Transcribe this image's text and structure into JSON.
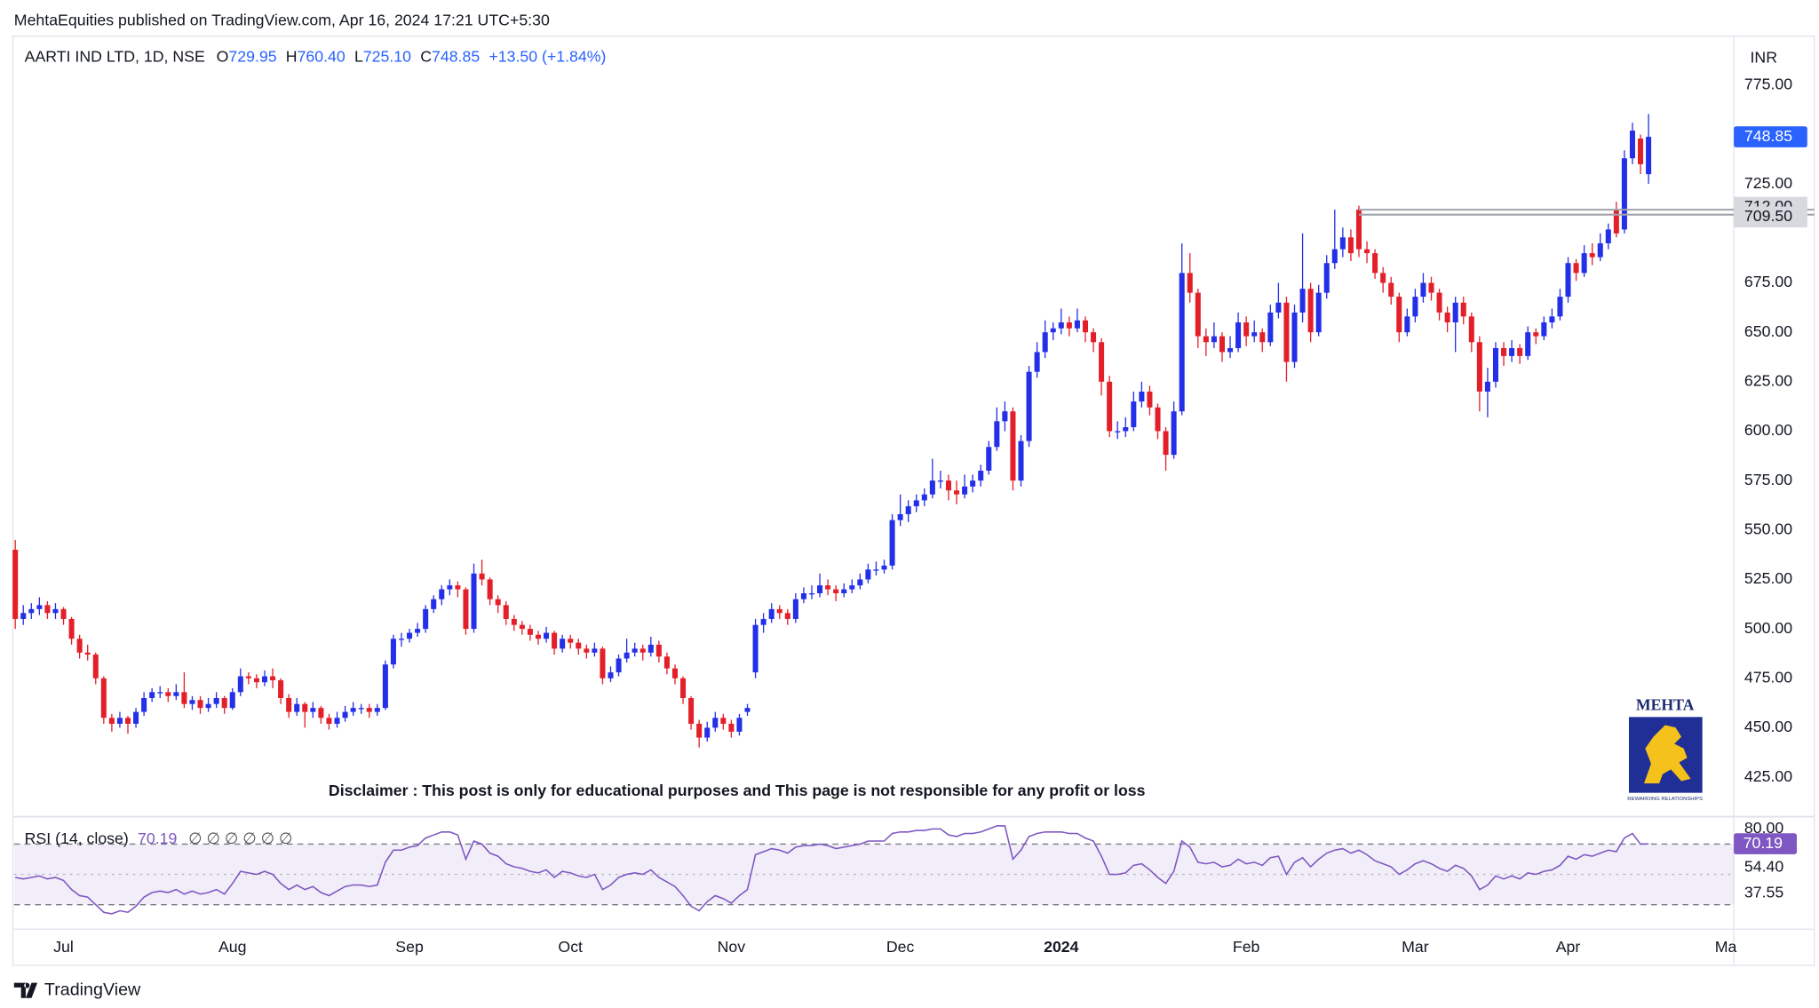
{
  "header": "MehtaEquities published on TradingView.com, Apr 16, 2024 17:21 UTC+5:30",
  "footer": "TradingView",
  "chart_data": {
    "type": "candlestick",
    "title": "AARTI IND LTD, 1D, NSE",
    "ohlc_prefixes": [
      "O",
      "H",
      "L",
      "C"
    ],
    "ohlc_labels": [
      "729.95",
      "760.40",
      "725.10",
      "748.85"
    ],
    "change_label": "+13.50 (+1.84%)",
    "currency": "INR",
    "last_price_label": "748.85",
    "up_color": "#2430e8",
    "down_color": "#e3202a",
    "annotation": "Disclaimer : This post is only for educational purposes and This page is not responsible for any profit or loss",
    "logo": {
      "title": "MEHTA",
      "tagline": "REWARDING RELATIONSHIPS"
    },
    "candles": [
      [
        540,
        545,
        500,
        505
      ],
      [
        505,
        512,
        502,
        508
      ],
      [
        508,
        513,
        505,
        510
      ],
      [
        510,
        516,
        507,
        512
      ],
      [
        512,
        514,
        505,
        508
      ],
      [
        508,
        513,
        505,
        510
      ],
      [
        510,
        511,
        502,
        505
      ],
      [
        505,
        506,
        492,
        495
      ],
      [
        495,
        497,
        485,
        488
      ],
      [
        488,
        492,
        484,
        487
      ],
      [
        487,
        488,
        472,
        475
      ],
      [
        475,
        476,
        452,
        455
      ],
      [
        455,
        457,
        448,
        452
      ],
      [
        452,
        458,
        450,
        455
      ],
      [
        455,
        456,
        447,
        452
      ],
      [
        452,
        460,
        450,
        458
      ],
      [
        458,
        468,
        456,
        465
      ],
      [
        465,
        470,
        463,
        468
      ],
      [
        468,
        471,
        465,
        468
      ],
      [
        468,
        470,
        463,
        466
      ],
      [
        466,
        472,
        464,
        468
      ],
      [
        468,
        478,
        460,
        462
      ],
      [
        462,
        466,
        459,
        464
      ],
      [
        464,
        466,
        457,
        460
      ],
      [
        460,
        465,
        458,
        462
      ],
      [
        462,
        468,
        460,
        465
      ],
      [
        465,
        466,
        457,
        460
      ],
      [
        460,
        470,
        459,
        468
      ],
      [
        468,
        480,
        466,
        476
      ],
      [
        476,
        478,
        472,
        475
      ],
      [
        475,
        477,
        470,
        473
      ],
      [
        473,
        479,
        471,
        476
      ],
      [
        476,
        480,
        470,
        474
      ],
      [
        474,
        475,
        462,
        465
      ],
      [
        465,
        467,
        455,
        458
      ],
      [
        458,
        465,
        456,
        462
      ],
      [
        462,
        463,
        450,
        458
      ],
      [
        458,
        463,
        455,
        460
      ],
      [
        460,
        461,
        452,
        455
      ],
      [
        455,
        457,
        449,
        452
      ],
      [
        452,
        458,
        450,
        455
      ],
      [
        455,
        461,
        453,
        458
      ],
      [
        458,
        463,
        456,
        460
      ],
      [
        460,
        462,
        457,
        460
      ],
      [
        460,
        462,
        455,
        458
      ],
      [
        458,
        462,
        456,
        460
      ],
      [
        460,
        484,
        459,
        482
      ],
      [
        482,
        497,
        480,
        495
      ],
      [
        495,
        498,
        491,
        495
      ],
      [
        495,
        500,
        493,
        498
      ],
      [
        498,
        503,
        496,
        500
      ],
      [
        500,
        512,
        498,
        510
      ],
      [
        510,
        517,
        508,
        515
      ],
      [
        515,
        522,
        512,
        520
      ],
      [
        520,
        525,
        517,
        522
      ],
      [
        522,
        524,
        516,
        520
      ],
      [
        520,
        521,
        497,
        500
      ],
      [
        500,
        533,
        498,
        528
      ],
      [
        528,
        535,
        522,
        525
      ],
      [
        525,
        526,
        512,
        515
      ],
      [
        515,
        517,
        508,
        512
      ],
      [
        512,
        514,
        502,
        505
      ],
      [
        505,
        507,
        499,
        502
      ],
      [
        502,
        504,
        497,
        500
      ],
      [
        500,
        502,
        494,
        497
      ],
      [
        497,
        499,
        492,
        495
      ],
      [
        495,
        501,
        493,
        498
      ],
      [
        498,
        499,
        487,
        490
      ],
      [
        490,
        497,
        488,
        495
      ],
      [
        495,
        497,
        490,
        493
      ],
      [
        493,
        495,
        487,
        490
      ],
      [
        490,
        492,
        485,
        488
      ],
      [
        488,
        493,
        486,
        490
      ],
      [
        490,
        491,
        472,
        475
      ],
      [
        475,
        481,
        473,
        478
      ],
      [
        478,
        487,
        476,
        485
      ],
      [
        485,
        495,
        483,
        488
      ],
      [
        488,
        493,
        486,
        490
      ],
      [
        490,
        492,
        484,
        488
      ],
      [
        488,
        496,
        486,
        492
      ],
      [
        492,
        494,
        483,
        486
      ],
      [
        486,
        488,
        477,
        480
      ],
      [
        480,
        482,
        472,
        475
      ],
      [
        475,
        476,
        462,
        465
      ],
      [
        465,
        466,
        449,
        452
      ],
      [
        452,
        454,
        440,
        445
      ],
      [
        445,
        453,
        443,
        450
      ],
      [
        450,
        458,
        448,
        455
      ],
      [
        455,
        457,
        449,
        452
      ],
      [
        452,
        454,
        445,
        448
      ],
      [
        448,
        457,
        446,
        455
      ],
      [
        458,
        462,
        456,
        460
      ],
      [
        478,
        505,
        475,
        502
      ],
      [
        502,
        508,
        498,
        505
      ],
      [
        505,
        513,
        503,
        510
      ],
      [
        510,
        512,
        505,
        508
      ],
      [
        508,
        510,
        502,
        505
      ],
      [
        505,
        518,
        503,
        515
      ],
      [
        515,
        521,
        513,
        518
      ],
      [
        518,
        522,
        515,
        518
      ],
      [
        518,
        528,
        516,
        522
      ],
      [
        522,
        525,
        517,
        520
      ],
      [
        520,
        522,
        514,
        518
      ],
      [
        518,
        523,
        516,
        520
      ],
      [
        520,
        525,
        518,
        522
      ],
      [
        522,
        528,
        520,
        525
      ],
      [
        525,
        533,
        523,
        530
      ],
      [
        530,
        534,
        527,
        530
      ],
      [
        530,
        535,
        528,
        532
      ],
      [
        532,
        558,
        530,
        555
      ],
      [
        555,
        568,
        552,
        558
      ],
      [
        558,
        565,
        554,
        562
      ],
      [
        562,
        568,
        559,
        565
      ],
      [
        565,
        571,
        562,
        568
      ],
      [
        568,
        586,
        566,
        575
      ],
      [
        575,
        580,
        571,
        575
      ],
      [
        575,
        578,
        565,
        570
      ],
      [
        570,
        575,
        563,
        568
      ],
      [
        568,
        578,
        566,
        572
      ],
      [
        572,
        578,
        569,
        575
      ],
      [
        575,
        583,
        572,
        580
      ],
      [
        580,
        595,
        578,
        592
      ],
      [
        592,
        612,
        590,
        605
      ],
      [
        605,
        615,
        600,
        610
      ],
      [
        610,
        612,
        570,
        575
      ],
      [
        575,
        598,
        572,
        595
      ],
      [
        595,
        633,
        592,
        630
      ],
      [
        630,
        645,
        627,
        640
      ],
      [
        640,
        656,
        637,
        650
      ],
      [
        650,
        655,
        646,
        652
      ],
      [
        652,
        662,
        649,
        655
      ],
      [
        655,
        658,
        648,
        652
      ],
      [
        652,
        662,
        650,
        656
      ],
      [
        656,
        658,
        645,
        650
      ],
      [
        650,
        652,
        640,
        645
      ],
      [
        645,
        647,
        618,
        625
      ],
      [
        625,
        628,
        597,
        600
      ],
      [
        600,
        605,
        596,
        600
      ],
      [
        600,
        607,
        597,
        602
      ],
      [
        602,
        620,
        600,
        615
      ],
      [
        615,
        625,
        612,
        620
      ],
      [
        620,
        623,
        608,
        612
      ],
      [
        612,
        614,
        596,
        600
      ],
      [
        600,
        602,
        580,
        588
      ],
      [
        588,
        615,
        586,
        610
      ],
      [
        610,
        695,
        608,
        680
      ],
      [
        680,
        690,
        665,
        670
      ],
      [
        670,
        672,
        642,
        648
      ],
      [
        648,
        652,
        638,
        645
      ],
      [
        645,
        655,
        642,
        648
      ],
      [
        648,
        650,
        635,
        640
      ],
      [
        640,
        648,
        637,
        642
      ],
      [
        642,
        660,
        640,
        655
      ],
      [
        655,
        658,
        643,
        648
      ],
      [
        648,
        656,
        645,
        650
      ],
      [
        650,
        652,
        640,
        645
      ],
      [
        645,
        664,
        643,
        660
      ],
      [
        660,
        675,
        657,
        665
      ],
      [
        665,
        668,
        625,
        635
      ],
      [
        635,
        664,
        632,
        660
      ],
      [
        660,
        700,
        655,
        672
      ],
      [
        672,
        675,
        645,
        650
      ],
      [
        650,
        674,
        648,
        670
      ],
      [
        670,
        689,
        667,
        685
      ],
      [
        685,
        712,
        682,
        692
      ],
      [
        692,
        703,
        688,
        698
      ],
      [
        698,
        702,
        686,
        690
      ],
      [
        712,
        714,
        688,
        692
      ],
      [
        692,
        696,
        685,
        690
      ],
      [
        690,
        692,
        677,
        680
      ],
      [
        680,
        683,
        670,
        675
      ],
      [
        675,
        678,
        664,
        668
      ],
      [
        668,
        670,
        645,
        650
      ],
      [
        650,
        662,
        648,
        658
      ],
      [
        658,
        672,
        655,
        668
      ],
      [
        668,
        680,
        665,
        675
      ],
      [
        675,
        678,
        666,
        670
      ],
      [
        670,
        672,
        656,
        660
      ],
      [
        660,
        663,
        650,
        655
      ],
      [
        655,
        668,
        640,
        665
      ],
      [
        665,
        668,
        654,
        658
      ],
      [
        658,
        660,
        640,
        645
      ],
      [
        645,
        648,
        610,
        620
      ],
      [
        620,
        632,
        607,
        625
      ],
      [
        625,
        645,
        622,
        642
      ],
      [
        642,
        645,
        633,
        638
      ],
      [
        638,
        646,
        635,
        642
      ],
      [
        642,
        644,
        634,
        638
      ],
      [
        638,
        653,
        636,
        650
      ],
      [
        650,
        652,
        644,
        648
      ],
      [
        648,
        658,
        646,
        655
      ],
      [
        655,
        662,
        652,
        658
      ],
      [
        658,
        672,
        656,
        668
      ],
      [
        668,
        688,
        665,
        685
      ],
      [
        685,
        687,
        676,
        680
      ],
      [
        680,
        694,
        678,
        690
      ],
      [
        690,
        695,
        684,
        688
      ],
      [
        688,
        700,
        686,
        695
      ],
      [
        695,
        705,
        692,
        702
      ],
      [
        712,
        716,
        698,
        700
      ],
      [
        702,
        742,
        700,
        738
      ],
      [
        738,
        756,
        735,
        752
      ],
      [
        748,
        750,
        730,
        735
      ],
      [
        729.95,
        760.4,
        725.1,
        748.85
      ]
    ],
    "xlim": [
      -0.15,
      213.6
    ],
    "xticks": [
      {
        "value": 6,
        "label": "Jul"
      },
      {
        "value": 27,
        "label": "Aug"
      },
      {
        "value": 49,
        "label": "Sep"
      },
      {
        "value": 69,
        "label": "Oct"
      },
      {
        "value": 89,
        "label": "Nov"
      },
      {
        "value": 110,
        "label": "Dec"
      },
      {
        "value": 130,
        "label": "2024"
      },
      {
        "value": 153,
        "label": "Feb"
      },
      {
        "value": 174,
        "label": "Mar"
      },
      {
        "value": 193,
        "label": "Apr"
      },
      {
        "value": 212.6,
        "label": "Ma"
      }
    ],
    "ylim": [
      405.3,
      798.6
    ],
    "yticks": [
      {
        "value": 425,
        "label": "425.00"
      },
      {
        "value": 450,
        "label": "450.00"
      },
      {
        "value": 475,
        "label": "475.00"
      },
      {
        "value": 500,
        "label": "500.00"
      },
      {
        "value": 525,
        "label": "525.00"
      },
      {
        "value": 550,
        "label": "550.00"
      },
      {
        "value": 575,
        "label": "575.00"
      },
      {
        "value": 600,
        "label": "600.00"
      },
      {
        "value": 625,
        "label": "625.00"
      },
      {
        "value": 650,
        "label": "650.00"
      },
      {
        "value": 675,
        "label": "675.00"
      },
      {
        "value": 725,
        "label": "725.00"
      },
      {
        "value": 775,
        "label": "775.00"
      }
    ],
    "levels": [
      {
        "value": 712,
        "label": "712.00"
      },
      {
        "value": 709.5,
        "label": "709.50"
      }
    ],
    "levels_from_x": 167,
    "rsi": {
      "type": "line",
      "name": "RSI (14, close)",
      "extra": "∅ ∅ ∅ ∅ ∅ ∅",
      "color": "#7e57c2",
      "value_label": "70.19",
      "ylim": [
        13.85,
        88.46
      ],
      "yticks": [
        {
          "value": 80,
          "label": "80.00"
        },
        {
          "value": 54.4,
          "label": "54.40"
        },
        {
          "value": 37.55,
          "label": "37.55"
        }
      ],
      "bands": [
        70,
        50,
        30
      ],
      "values": [
        48,
        47,
        48,
        49,
        47,
        48,
        46,
        40,
        36,
        35,
        30,
        25,
        24,
        26,
        25,
        29,
        35,
        38,
        39,
        38,
        40,
        37,
        39,
        37,
        38,
        40,
        37,
        44,
        52,
        51,
        50,
        52,
        50,
        44,
        40,
        43,
        40,
        42,
        38,
        36,
        39,
        42,
        43,
        43,
        42,
        43,
        58,
        66,
        66,
        68,
        69,
        74,
        76,
        78,
        78,
        76,
        60,
        72,
        70,
        64,
        62,
        57,
        55,
        54,
        52,
        51,
        53,
        48,
        52,
        51,
        49,
        48,
        50,
        40,
        43,
        48,
        50,
        51,
        50,
        53,
        48,
        45,
        42,
        36,
        29,
        26,
        32,
        36,
        34,
        31,
        36,
        40,
        63,
        65,
        67,
        66,
        64,
        68,
        69,
        69,
        70,
        69,
        67,
        68,
        69,
        70,
        72,
        72,
        72,
        77,
        78,
        78,
        79,
        79,
        80,
        80,
        76,
        75,
        77,
        77,
        78,
        80,
        82,
        82,
        60,
        66,
        75,
        77,
        78,
        78,
        78,
        77,
        77,
        74,
        72,
        62,
        50,
        50,
        51,
        56,
        57,
        53,
        48,
        44,
        52,
        72,
        68,
        58,
        57,
        58,
        55,
        56,
        60,
        57,
        58,
        56,
        61,
        62,
        50,
        58,
        61,
        55,
        60,
        64,
        66,
        67,
        64,
        66,
        63,
        59,
        57,
        55,
        50,
        53,
        57,
        59,
        57,
        54,
        52,
        56,
        54,
        49,
        40,
        43,
        49,
        47,
        49,
        47,
        51,
        50,
        52,
        53,
        56,
        62,
        60,
        63,
        62,
        64,
        66,
        65,
        74,
        77,
        70,
        70.19
      ]
    }
  }
}
